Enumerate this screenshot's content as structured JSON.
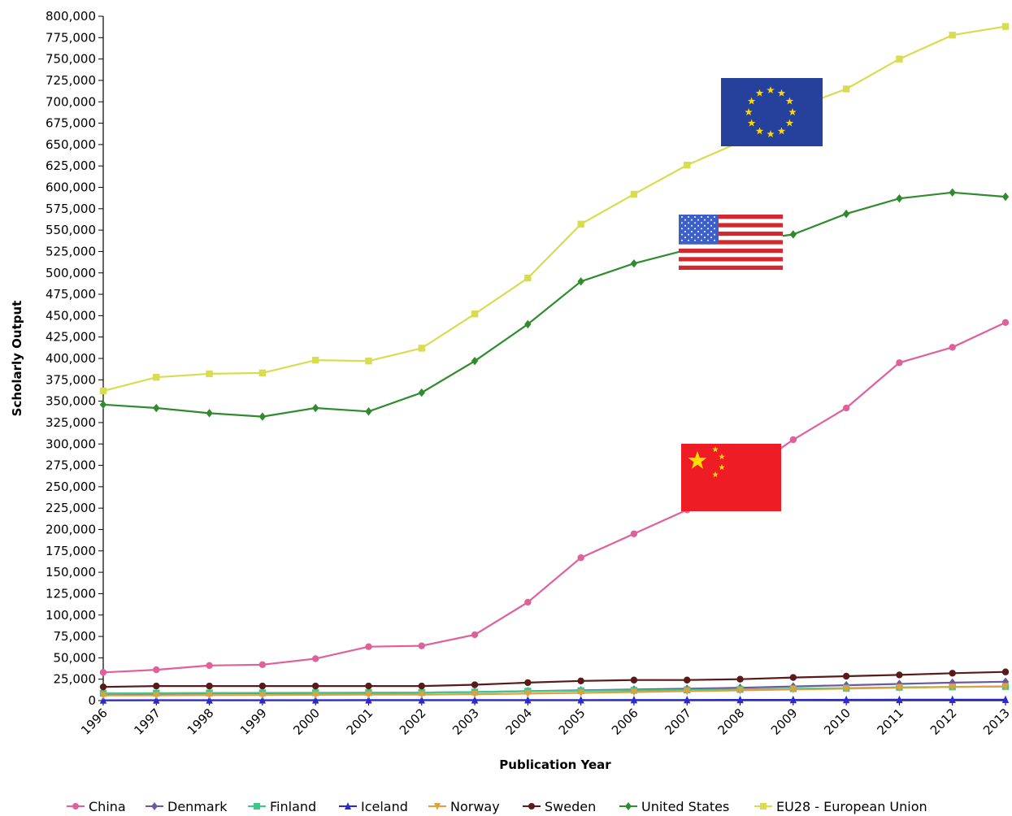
{
  "chart_data": {
    "type": "line",
    "title": "",
    "xlabel": "Publication Year",
    "ylabel": "Scholarly Output",
    "ylim": [
      0,
      800000
    ],
    "ytick_step": 25000,
    "x": [
      "1996",
      "1997",
      "1998",
      "1999",
      "2000",
      "2001",
      "2002",
      "2003",
      "2004",
      "2005",
      "2006",
      "2007",
      "2008",
      "2009",
      "2010",
      "2011",
      "2012",
      "2013"
    ],
    "grid": false,
    "legend_position": "bottom",
    "series": [
      {
        "name": "China",
        "color": "#e0609a",
        "marker": "circle",
        "values": [
          33000,
          36000,
          41000,
          42000,
          49000,
          63000,
          64000,
          77000,
          115000,
          167000,
          195000,
          223000,
          262000,
          305000,
          342000,
          395000,
          413000,
          442000
        ]
      },
      {
        "name": "Denmark",
        "color": "#6a5a9c",
        "marker": "diamond",
        "values": [
          8000,
          8200,
          8400,
          8600,
          8800,
          9000,
          9300,
          10000,
          11000,
          12000,
          13000,
          14000,
          15000,
          16500,
          18000,
          19500,
          21000,
          22000
        ]
      },
      {
        "name": "Finland",
        "color": "#3ec98a",
        "marker": "square",
        "values": [
          8500,
          8700,
          8900,
          9000,
          9200,
          9300,
          9400,
          10000,
          11000,
          11500,
          12000,
          12500,
          13000,
          14000,
          14500,
          15500,
          16000,
          16500
        ]
      },
      {
        "name": "Iceland",
        "color": "#2a2ad0",
        "marker": "triangle-up",
        "values": [
          400,
          450,
          480,
          500,
          520,
          540,
          560,
          600,
          650,
          700,
          750,
          800,
          850,
          900,
          950,
          1000,
          1100,
          1150
        ]
      },
      {
        "name": "Norway",
        "color": "#e0a040",
        "marker": "triangle-down",
        "values": [
          6000,
          6200,
          6400,
          6500,
          6700,
          6900,
          7000,
          7500,
          8200,
          9000,
          10000,
          11000,
          12000,
          13000,
          14000,
          15000,
          16000,
          16500
        ]
      },
      {
        "name": "Sweden",
        "color": "#5a1a1a",
        "marker": "circle",
        "values": [
          16000,
          17000,
          17000,
          17000,
          17000,
          17000,
          17000,
          18500,
          21000,
          23000,
          24000,
          24000,
          25000,
          27000,
          28500,
          30000,
          32000,
          33500
        ]
      },
      {
        "name": "United States",
        "color": "#2e8b2e",
        "marker": "diamond",
        "values": [
          346000,
          342000,
          336000,
          332000,
          342000,
          338000,
          360000,
          397000,
          440000,
          490000,
          511000,
          527000,
          536000,
          545000,
          569000,
          587000,
          594000,
          589000
        ]
      },
      {
        "name": "EU28 - European Union",
        "color": "#d8dc50",
        "marker": "square",
        "values": [
          362000,
          378000,
          382000,
          383000,
          398000,
          397000,
          412000,
          452000,
          494000,
          557000,
          592000,
          626000,
          653000,
          692000,
          715000,
          750000,
          778000,
          788000
        ]
      }
    ]
  },
  "overlays": {
    "eu_flag": {
      "icon": "eu-flag-icon",
      "bg": "#26419c",
      "star": "#ffd700"
    },
    "us_flag": {
      "icon": "us-flag-icon",
      "red": "#d3282f",
      "blue": "#3c60c8"
    },
    "cn_flag": {
      "icon": "cn-flag-icon",
      "red": "#ee1c25",
      "star": "#ffde00"
    }
  }
}
